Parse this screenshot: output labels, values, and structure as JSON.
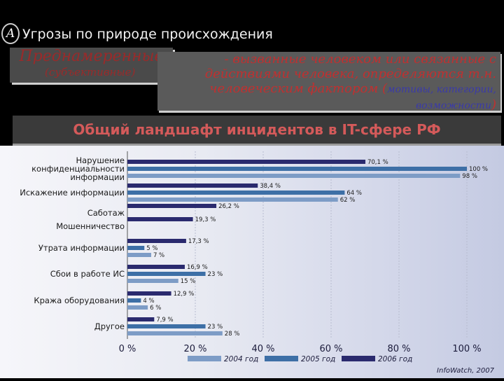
{
  "header": {
    "badge": "А",
    "title": "Угрозы по природе происхождения",
    "tag_main": "Преднамеренные",
    "tag_sub": "(субъективные)",
    "desc_line1": "- вызванные человеком или связанные с",
    "desc_line2": "действиями человека, определяются т.н.",
    "desc_line3_a": "человеческим фактором (",
    "desc_line3_b": "мотивы, категории,",
    "desc_line4_a": "возможности",
    "desc_line4_b": ")"
  },
  "banner": {
    "text": "Общий ландшафт инцидентов в IT-сфере РФ"
  },
  "chart_data": {
    "type": "bar",
    "orientation": "horizontal",
    "categories": [
      "Нарушение конфиденциальности информации",
      "Искажение информации",
      "Саботаж",
      "Мошенничество",
      "Утрата информации",
      "Сбои в работе ИС",
      "Кража оборудования",
      "Другое"
    ],
    "label_lines": [
      [
        "Нарушение",
        "конфиденциальности",
        "информации"
      ],
      [
        "Искажение информации"
      ],
      [
        "Саботаж"
      ],
      [
        "Мошенничество"
      ],
      [
        "Утрата информации"
      ],
      [
        "Сбои в работе ИС"
      ],
      [
        "Кража оборудования"
      ],
      [
        "Другое"
      ]
    ],
    "series": [
      {
        "name": "2006 год",
        "color": "#2a2a6e",
        "values": [
          70.1,
          null,
          26.2,
          19.3,
          17.3,
          16.9,
          12.9,
          7.9
        ]
      },
      {
        "name": "2005 год",
        "color": "#3d6fa6",
        "values": [
          100,
          64,
          null,
          null,
          5,
          23,
          4,
          23
        ]
      },
      {
        "name": "2004 год",
        "color": "#7d9cc6",
        "values": [
          98,
          62,
          null,
          null,
          7,
          15,
          6,
          28
        ]
      }
    ],
    "value_labels": [
      [
        "70,1 %",
        null,
        "26,2 %",
        "19,3 %",
        "17,3 %",
        "16,9 %",
        "12,9 %",
        "7,9 %"
      ],
      [
        "100 %",
        "64 %",
        null,
        null,
        "5 %",
        "23 %",
        "4 %",
        "23 %"
      ],
      [
        "98 %",
        "62 %",
        null,
        null,
        "7 %",
        "15 %",
        "6 %",
        "28 %"
      ]
    ],
    "extra_bars": [
      {
        "category_index": 1,
        "series": "2006 год",
        "value": 38.4,
        "label": "38,4 %"
      }
    ],
    "xticks": [
      "0 %",
      "20 %",
      "40 %",
      "60 %",
      "80 %",
      "100 %"
    ],
    "xlim": [
      0,
      100
    ],
    "legend": [
      "2004 год",
      "2005 год",
      "2006 год"
    ],
    "legend_position": "bottom",
    "source": "InfoWatch, 2007"
  }
}
